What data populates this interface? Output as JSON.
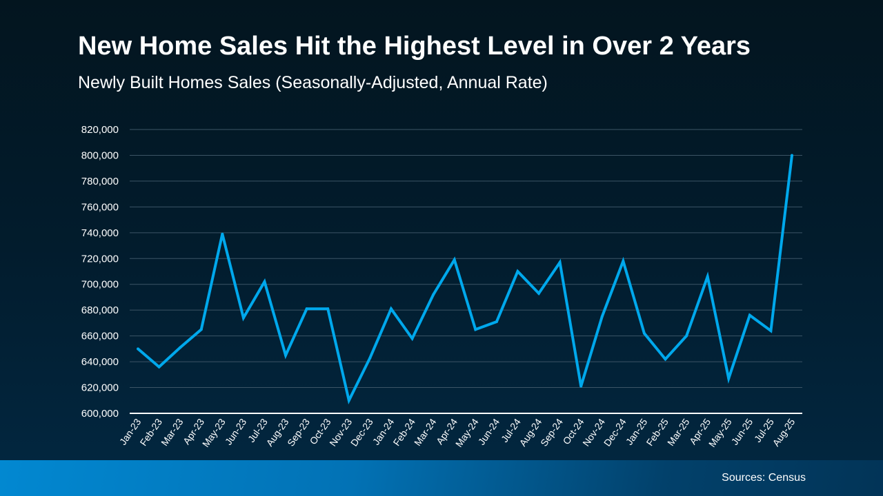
{
  "chart_data": {
    "type": "line",
    "title": "New Home Sales Hit the Highest Level in Over 2 Years",
    "subtitle": "Newly Built Homes Sales (Seasonally-Adjusted, Annual Rate)",
    "xlabel": "",
    "ylabel": "",
    "ylim": [
      600000,
      820000
    ],
    "yticks": [
      600000,
      620000,
      640000,
      660000,
      680000,
      700000,
      720000,
      740000,
      760000,
      780000,
      800000,
      820000
    ],
    "grid": true,
    "line_color": "#00a8ec",
    "categories": [
      "Jan-23",
      "Feb-23",
      "Mar-23",
      "Apr-23",
      "May-23",
      "Jun-23",
      "Jul-23",
      "Aug-23",
      "Sep-23",
      "Oct-23",
      "Nov-23",
      "Dec-23",
      "Jan-24",
      "Feb-24",
      "Mar-24",
      "Apr-24",
      "May-24",
      "Jun-24",
      "Jul-24",
      "Aug-24",
      "Sep-24",
      "Oct-24",
      "Nov-24",
      "Dec-24",
      "Jan-25",
      "Feb-25",
      "Mar-25",
      "Apr-25",
      "May-25",
      "Jun-25",
      "Jul-25",
      "Aug-25"
    ],
    "values": [
      650000,
      636000,
      651000,
      665000,
      739000,
      674000,
      702000,
      645000,
      681000,
      681000,
      610000,
      643000,
      681000,
      658000,
      692000,
      719000,
      665000,
      671000,
      710000,
      693000,
      717000,
      621000,
      675000,
      718000,
      662000,
      642000,
      660000,
      706000,
      627000,
      676000,
      664000,
      800000
    ]
  },
  "footer": {
    "source": "Sources: Census"
  }
}
